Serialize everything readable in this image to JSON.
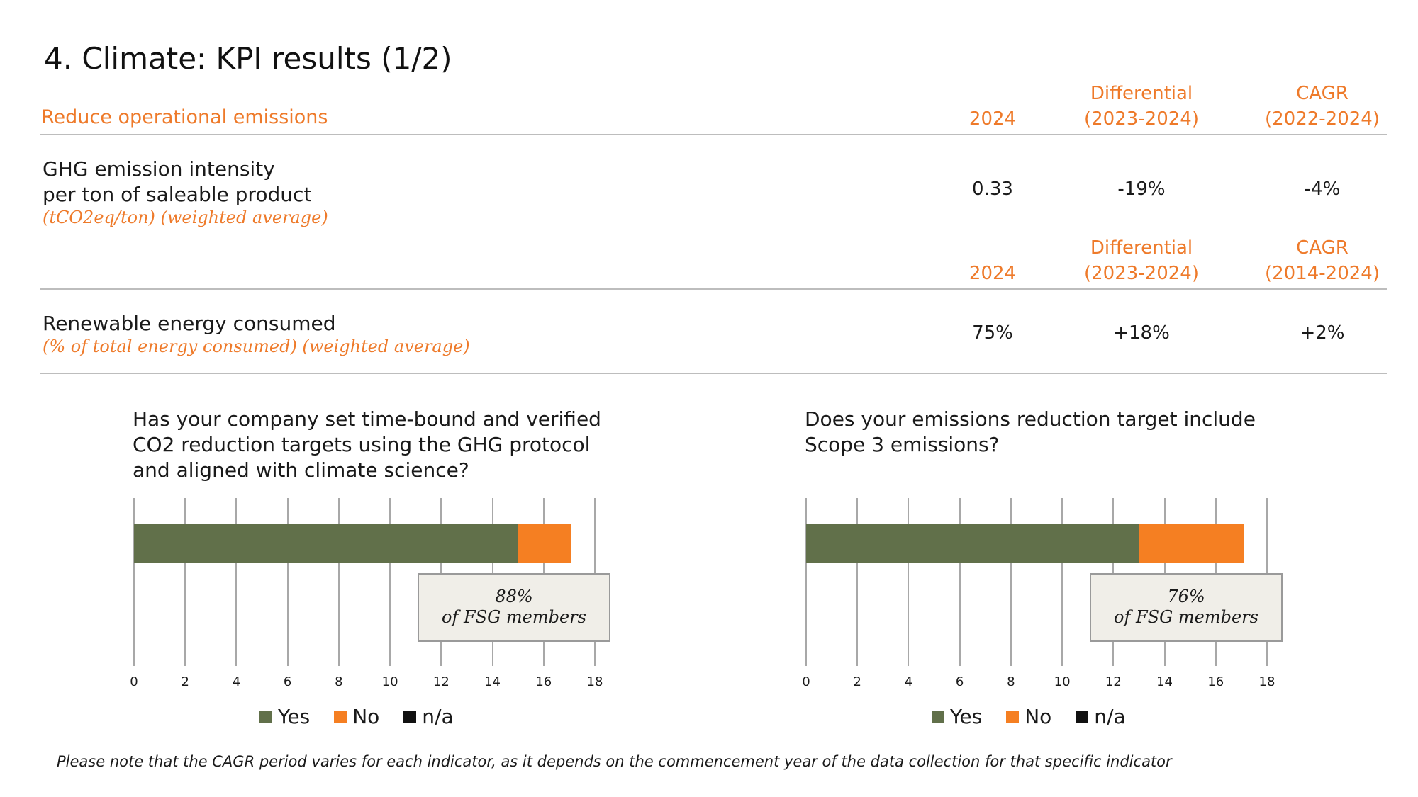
{
  "page": {
    "title": "4. Climate: KPI results (1/2)"
  },
  "section1": {
    "label": "Reduce operational emissions",
    "col_year": "2024",
    "col_diff_1": "Differential",
    "col_diff_2": "(2023-2024)",
    "col_cagr_1": "CAGR",
    "col_cagr_2": "(2022-2024)",
    "kpi_line1": "GHG emission intensity",
    "kpi_line2": "per ton of saleable product",
    "kpi_unit": "(tCO2eq/ton) (weighted average)",
    "value": "0.33",
    "diff": "-19%",
    "cagr": "-4%"
  },
  "section2": {
    "col_year": "2024",
    "col_diff_1": "Differential",
    "col_diff_2": "(2023-2024)",
    "col_cagr_1": "CAGR",
    "col_cagr_2": "(2014-2024)",
    "kpi_line1": "Renewable energy consumed",
    "kpi_unit": "(% of total energy consumed) (weighted average)",
    "value": "75%",
    "diff": "+18%",
    "cagr": "+2%"
  },
  "chart_data": [
    {
      "type": "bar",
      "orientation": "horizontal",
      "stacked": true,
      "title_lines": [
        "Has your company set time-bound and verified",
        "CO2 reduction targets using the GHG protocol",
        "and aligned with climate science?"
      ],
      "series": [
        {
          "name": "Yes",
          "values": [
            15
          ],
          "color": "#61704a"
        },
        {
          "name": "No",
          "values": [
            2.1
          ],
          "color": "#f57f22"
        },
        {
          "name": "n/a",
          "values": [
            0
          ],
          "color": "#111111"
        }
      ],
      "xlim": [
        0,
        18
      ],
      "xticks": [
        "0",
        "2",
        "4",
        "6",
        "8",
        "10",
        "12",
        "14",
        "16",
        "18"
      ],
      "grid": true,
      "legend_position": "bottom",
      "annotation_line1": "88%",
      "annotation_line2": "of FSG members"
    },
    {
      "type": "bar",
      "orientation": "horizontal",
      "stacked": true,
      "title_lines": [
        "Does your emissions reduction target include",
        "Scope 3 emissions?"
      ],
      "series": [
        {
          "name": "Yes",
          "values": [
            13
          ],
          "color": "#61704a"
        },
        {
          "name": "No",
          "values": [
            4.1
          ],
          "color": "#f57f22"
        },
        {
          "name": "n/a",
          "values": [
            0
          ],
          "color": "#111111"
        }
      ],
      "xlim": [
        0,
        18
      ],
      "xticks": [
        "0",
        "2",
        "4",
        "6",
        "8",
        "10",
        "12",
        "14",
        "16",
        "18"
      ],
      "grid": true,
      "legend_position": "bottom",
      "annotation_line1": "76%",
      "annotation_line2": "of FSG members"
    }
  ],
  "footnote": "Please note that the CAGR period varies for each indicator, as it depends on the commencement year of the data collection for that specific indicator"
}
